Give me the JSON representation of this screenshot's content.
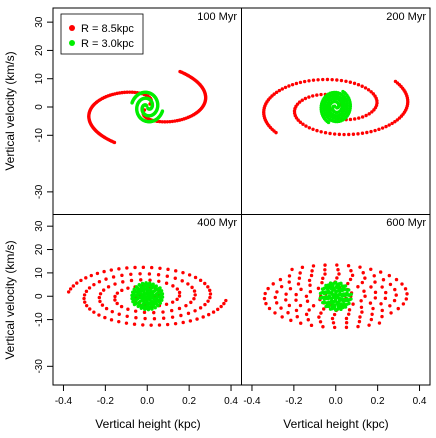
{
  "chart_data": {
    "type": "scatter",
    "xlabel": "Vertical height (kpc)",
    "ylabel": "Vertical velocity (km/s)",
    "xlim": [
      -0.45,
      0.45
    ],
    "ylim": [
      -38,
      35
    ],
    "xticks": [
      -0.4,
      -0.2,
      0.0,
      0.2,
      0.4
    ],
    "yticks": [
      -30,
      -10,
      0,
      10,
      20,
      30
    ],
    "grid": false,
    "legend": {
      "placement": "top-left",
      "panel": "100 Myr",
      "entries": [
        {
          "label": "R = 8.5kpc",
          "color": "#ff0000"
        },
        {
          "label": "R = 3.0kpc",
          "color": "#00ee00"
        }
      ]
    },
    "series": [
      {
        "name": "R = 8.5kpc",
        "color": "#ff0000",
        "amplitude_kpc": 0.38,
        "period_myr": 93
      },
      {
        "name": "R = 3.0kpc",
        "color": "#00ee00",
        "amplitude_kpc": 0.075,
        "period_myr": 41
      }
    ],
    "panels": [
      {
        "title": "100 Myr",
        "time_myr": 100
      },
      {
        "title": "200 Myr",
        "time_myr": 200
      },
      {
        "title": "400 Myr",
        "time_myr": 400
      },
      {
        "title": "600 Myr",
        "time_myr": 600
      }
    ]
  }
}
